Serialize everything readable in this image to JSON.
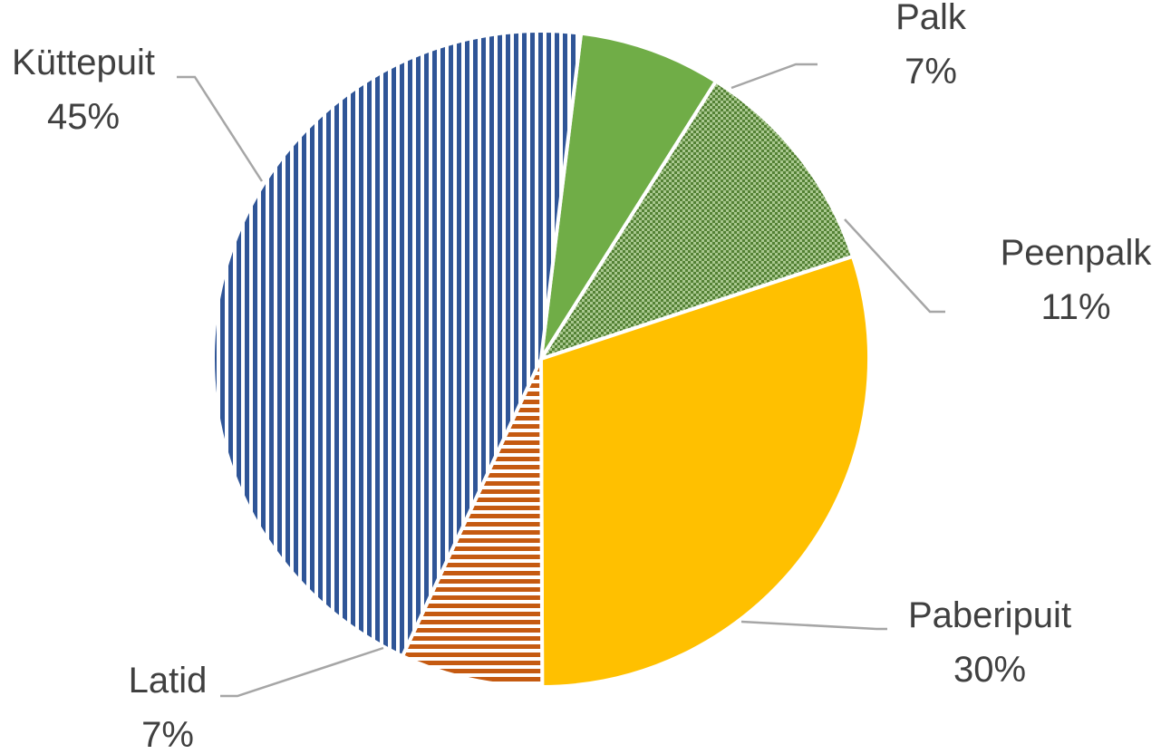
{
  "chart_data": {
    "type": "pie",
    "title": "",
    "start_angle_deg": 7,
    "direction": "clockwise",
    "slices": [
      {
        "label": "Palk",
        "value": 7,
        "display": "7%",
        "color": "#70ad47",
        "pattern": "solid"
      },
      {
        "label": "Peenpalk",
        "value": 11,
        "display": "11%",
        "color": "#548235",
        "pattern": "checker"
      },
      {
        "label": "Paberipuit",
        "value": 30,
        "display": "30%",
        "color": "#ffc000",
        "pattern": "solid"
      },
      {
        "label": "Latid",
        "value": 7,
        "display": "7%",
        "color": "#c55a11",
        "pattern": "horizontal-stripes"
      },
      {
        "label": "Küttepuit",
        "value": 45,
        "display": "45%",
        "color": "#2f5597",
        "pattern": "vertical-stripes"
      }
    ],
    "data_labels": "outside-with-leader-lines",
    "legend": "none"
  }
}
